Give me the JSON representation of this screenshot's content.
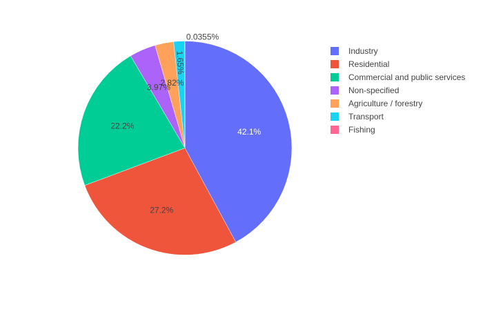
{
  "chart_data": {
    "type": "pie",
    "start_angle_deg": 90,
    "direction": "clockwise",
    "legend_position": "top-right",
    "slices": [
      {
        "label": "Industry",
        "value": 42.1,
        "color": "#636efa",
        "text": "42.1%",
        "text_color": "#ffffff"
      },
      {
        "label": "Residential",
        "value": 27.2,
        "color": "#ef553b",
        "text": "27.2%",
        "text_color": "#444444"
      },
      {
        "label": "Commercial and public services",
        "value": 22.2,
        "color": "#00cc96",
        "text": "22.2%",
        "text_color": "#444444"
      },
      {
        "label": "Non-specified",
        "value": 3.97,
        "color": "#ab63fa",
        "text": "3.97%",
        "text_color": "#444444"
      },
      {
        "label": "Agriculture / forestry",
        "value": 2.82,
        "color": "#ffa15a",
        "text": "2.82%",
        "text_color": "#444444"
      },
      {
        "label": "Transport",
        "value": 1.65,
        "color": "#19d3f3",
        "text": "1.65%",
        "text_color": "#444444"
      },
      {
        "label": "Fishing",
        "value": 0.0355,
        "color": "#ff6692",
        "text": "0.0355%",
        "text_color": "#444444"
      }
    ]
  }
}
